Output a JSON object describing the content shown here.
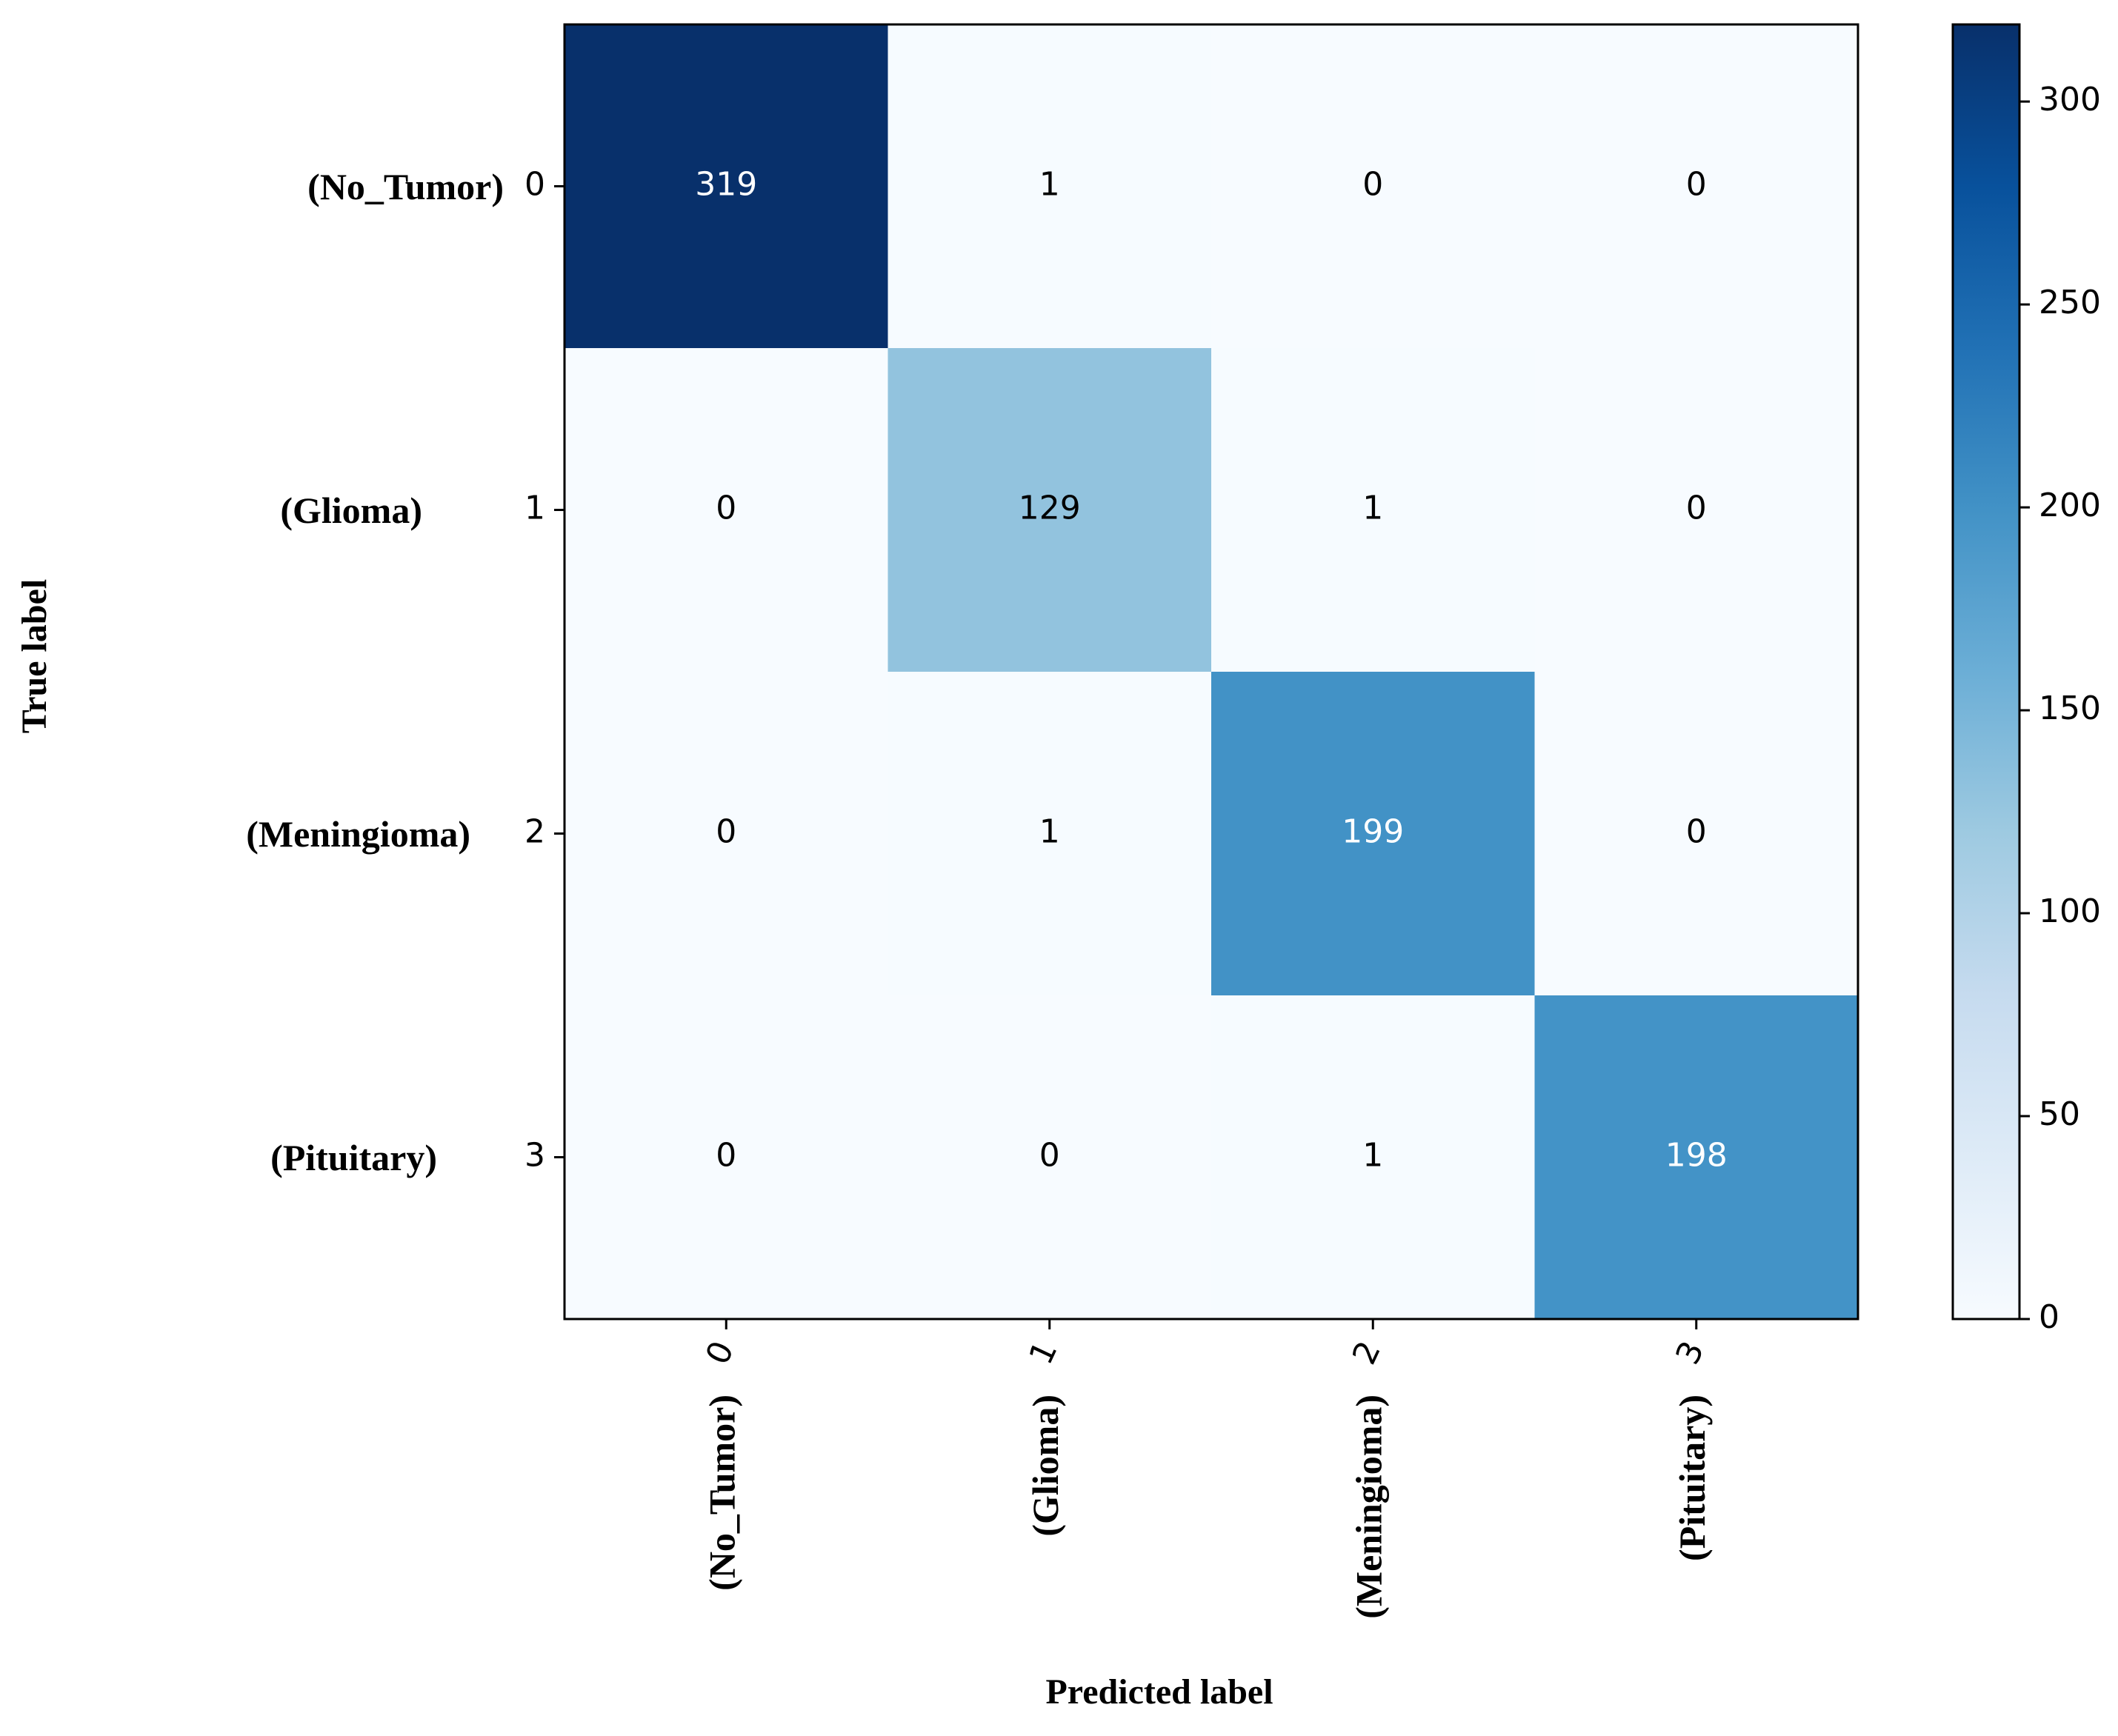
{
  "chart_data": {
    "type": "heatmap",
    "title": "",
    "xlabel": "Predicted label",
    "ylabel": "True label",
    "x_ticks": [
      "0",
      "1",
      "2",
      "3"
    ],
    "y_ticks": [
      "0",
      "1",
      "2",
      "3"
    ],
    "x_class_labels": [
      "(No_Tumor)",
      "(Glioma)",
      "(Meningioma)",
      "(Pituitary)"
    ],
    "y_class_labels": [
      "(No_Tumor)",
      "(Glioma)",
      "(Meningioma)",
      "(Pituitary)"
    ],
    "matrix": [
      [
        319,
        1,
        0,
        0
      ],
      [
        0,
        129,
        1,
        0
      ],
      [
        0,
        1,
        199,
        0
      ],
      [
        0,
        0,
        1,
        198
      ]
    ],
    "colormap": "Blues",
    "color_range": [
      0,
      319
    ],
    "colorbar_ticks": [
      0,
      50,
      100,
      150,
      200,
      250,
      300
    ],
    "colorbar_tick_labels": [
      "0",
      "50",
      "100",
      "150",
      "200",
      "250",
      "300"
    ],
    "text_colors": {
      "dark_on_light": "#000000",
      "light_on_dark": "#ffffff"
    }
  }
}
